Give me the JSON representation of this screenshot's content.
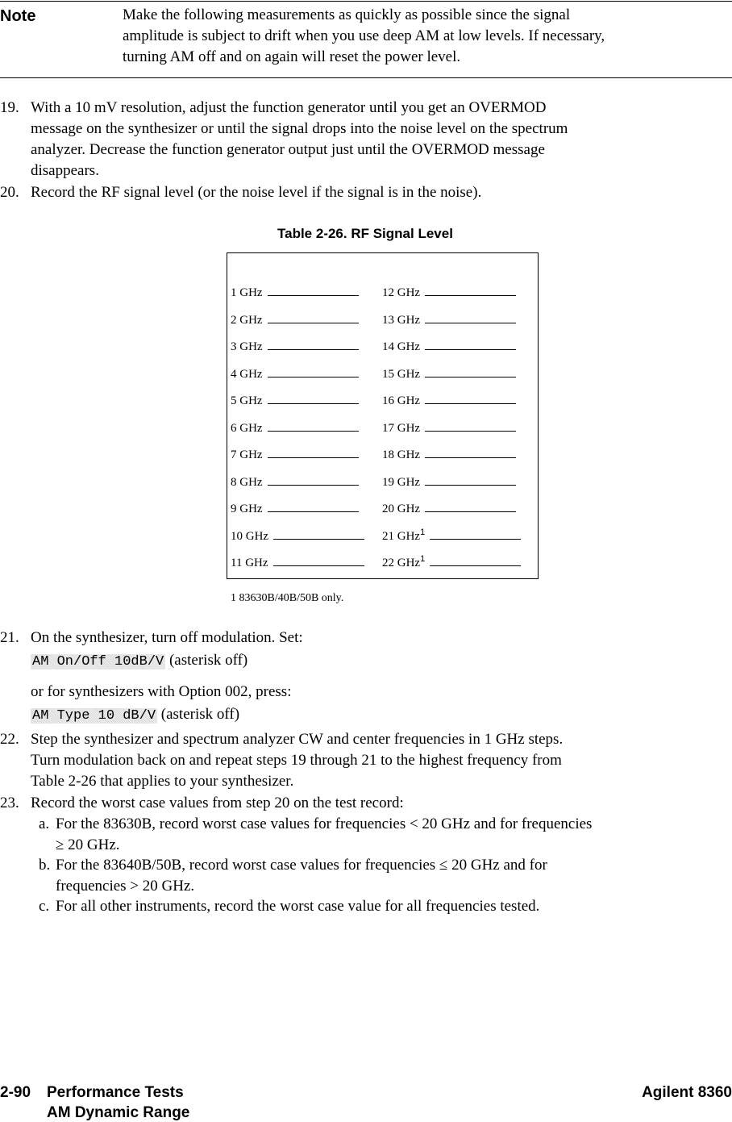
{
  "note": {
    "label": "Note",
    "lines": [
      "Make the following measurements as quickly as possible since the signal",
      "amplitude is subject to drift when you use deep AM at low levels. If necessary,",
      "turning AM off and on again will reset the power level."
    ]
  },
  "steps_top": [
    {
      "num": "19.",
      "lines": [
        "With a 10 mV resolution, adjust the function generator until you get an OVERMOD",
        "message on the synthesizer or until the signal drops into the noise level on the spectrum",
        "analyzer. Decrease the function generator output just until the OVERMOD message",
        "disappears."
      ]
    },
    {
      "num": "20.",
      "lines": [
        "Record the RF signal level (or the noise level if the signal is in the noise)."
      ]
    }
  ],
  "table": {
    "title": "Table 2-26. RF Signal Level",
    "left": [
      "1 GHz",
      "2 GHz",
      "3 GHz",
      "4 GHz",
      "5 GHz",
      "6 GHz",
      "7 GHz",
      "8 GHz",
      "9 GHz",
      "10 GHz",
      "11 GHz"
    ],
    "right": [
      "12 GHz",
      "13 GHz",
      "14 GHz",
      "15 GHz",
      "16 GHz",
      "17 GHz",
      "18 GHz",
      "19 GHz",
      "20 GHz",
      "21 GHz",
      "22 GHz"
    ],
    "footnote_mark": "1",
    "footnote": "1 83630B/40B/50B only."
  },
  "step21": {
    "num": "21.",
    "line1": "On the synthesizer, turn off modulation. Set:",
    "key1": "AM On/Off 10dB/V",
    "suffix1": "(asterisk off)",
    "line2": "or for synthesizers with Option 002, press:",
    "key2": "AM Type 10 dB/V",
    "suffix2": "(asterisk off)"
  },
  "step22": {
    "num": "22.",
    "lines": [
      "Step the synthesizer and spectrum analyzer CW and center frequencies in 1 GHz steps.",
      "Turn modulation back on and repeat steps 19 through 21 to the highest frequency from",
      "Table 2-26 that applies to your synthesizer."
    ]
  },
  "step23": {
    "num": "23.",
    "line": "Record the worst case values from step 20 on the test record:",
    "subs": [
      {
        "label": "a.",
        "lines": [
          "For the 83630B, record worst case values for frequencies < 20 GHz and for frequencies",
          "≥ 20 GHz."
        ]
      },
      {
        "label": "b.",
        "lines": [
          "For the 83640B/50B, record worst case values for frequencies ≤ 20 GHz and for",
          "frequencies > 20 GHz."
        ]
      },
      {
        "label": "c.",
        "lines": [
          "For all other instruments, record the worst case value for all frequencies tested."
        ]
      }
    ]
  },
  "footer": {
    "page": "2-90",
    "section": "Performance Tests",
    "subsection": "AM Dynamic Range",
    "product": "Agilent 8360"
  }
}
